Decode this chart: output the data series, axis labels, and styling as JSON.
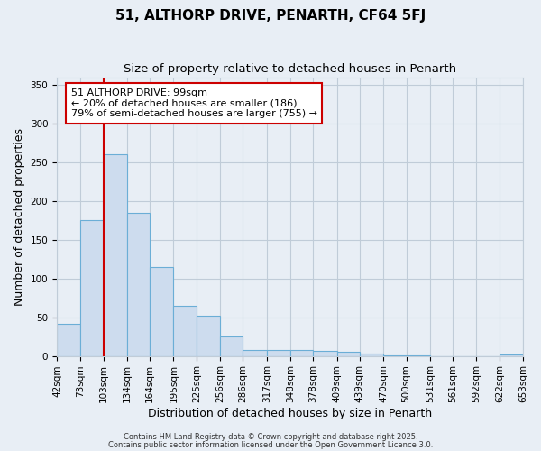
{
  "title1": "51, ALTHORP DRIVE, PENARTH, CF64 5FJ",
  "title2": "Size of property relative to detached houses in Penarth",
  "xlabel": "Distribution of detached houses by size in Penarth",
  "ylabel": "Number of detached properties",
  "bin_edges": [
    42,
    73,
    103,
    134,
    164,
    195,
    225,
    256,
    286,
    317,
    348,
    378,
    409,
    439,
    470,
    500,
    531,
    561,
    592,
    622,
    653
  ],
  "bar_heights": [
    42,
    175,
    260,
    185,
    115,
    65,
    52,
    25,
    8,
    8,
    8,
    6,
    5,
    3,
    1,
    1,
    0,
    0,
    0,
    2
  ],
  "bar_facecolor": "#cddcee",
  "bar_edgecolor": "#6baed6",
  "grid_color": "#c0ccd8",
  "bg_color": "#e8eef5",
  "vline_color": "#cc0000",
  "vline_x": 103,
  "annotation_line1": "51 ALTHORP DRIVE: 99sqm",
  "annotation_line2": "← 20% of detached houses are smaller (186)",
  "annotation_line3": "79% of semi-detached houses are larger (755) →",
  "annotation_box_facecolor": "#ffffff",
  "annotation_box_edgecolor": "#cc0000",
  "footnote1": "Contains HM Land Registry data © Crown copyright and database right 2025.",
  "footnote2": "Contains public sector information licensed under the Open Government Licence 3.0.",
  "ylim": [
    0,
    360
  ],
  "yticks": [
    0,
    50,
    100,
    150,
    200,
    250,
    300,
    350
  ],
  "title1_fontsize": 11,
  "title2_fontsize": 9.5,
  "tick_fontsize": 7.5,
  "label_fontsize": 9,
  "annot_fontsize": 8,
  "footnote_fontsize": 6
}
